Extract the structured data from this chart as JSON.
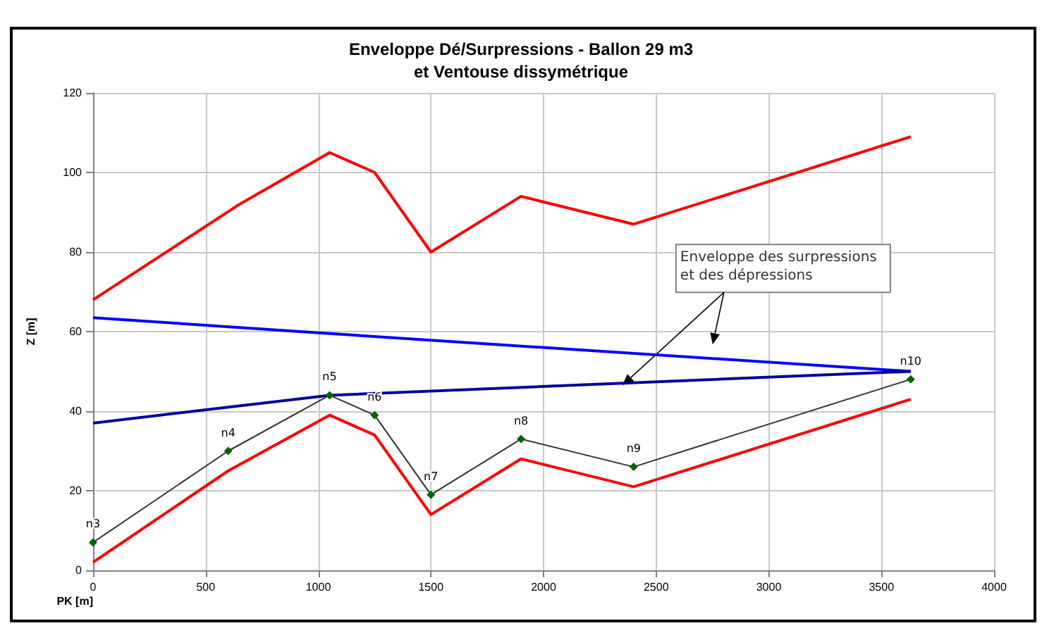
{
  "chart_data": {
    "type": "line",
    "title": "Enveloppe Dé/Surpressions - Ballon 29 m3\net Ventouse dissymétrique",
    "xlabel": "PK [m]",
    "ylabel": "Z [m]",
    "xlim": [
      0,
      4000
    ],
    "xticks": [
      0,
      500,
      1000,
      1500,
      2000,
      2500,
      3000,
      3500,
      4000
    ],
    "ylim": [
      0,
      120
    ],
    "yticks": [
      0,
      20,
      40,
      60,
      80,
      100,
      120
    ],
    "grid": true,
    "marker": "none",
    "series": [
      {
        "color": "#ff0000",
        "x": [
          0,
          650,
          1050,
          1250,
          1500,
          1900,
          2400,
          3630
        ],
        "values": [
          68,
          92,
          105,
          100,
          80,
          94,
          87,
          109
        ]
      },
      {
        "color": "#ff0000",
        "x": [
          0,
          600,
          1050,
          1250,
          1500,
          1900,
          2400,
          3630
        ],
        "values": [
          2,
          25,
          39,
          34,
          14,
          28,
          21,
          43
        ]
      },
      {
        "color": "#0000ff",
        "x": [
          0,
          1050,
          3630
        ],
        "values": [
          63.5,
          59.5,
          50
        ]
      },
      {
        "color": "#000099",
        "x": [
          0,
          1050,
          3630
        ],
        "values": [
          37,
          44,
          50
        ]
      },
      {
        "color": "#333333",
        "marker": "diamond",
        "x": [
          0,
          600,
          1050,
          1250,
          1500,
          1900,
          2400,
          3630
        ],
        "values": [
          7,
          30,
          44,
          39,
          19,
          33,
          26,
          48
        ],
        "value_labels": [
          "n3",
          "n4",
          "n5",
          "n6",
          "n7",
          "n8",
          "n9",
          "n10"
        ]
      }
    ],
    "annotations": [
      {
        "text": "Enveloppe des surpressions\net des dépressions",
        "x": 2350,
        "y": 46.5
      }
    ]
  }
}
